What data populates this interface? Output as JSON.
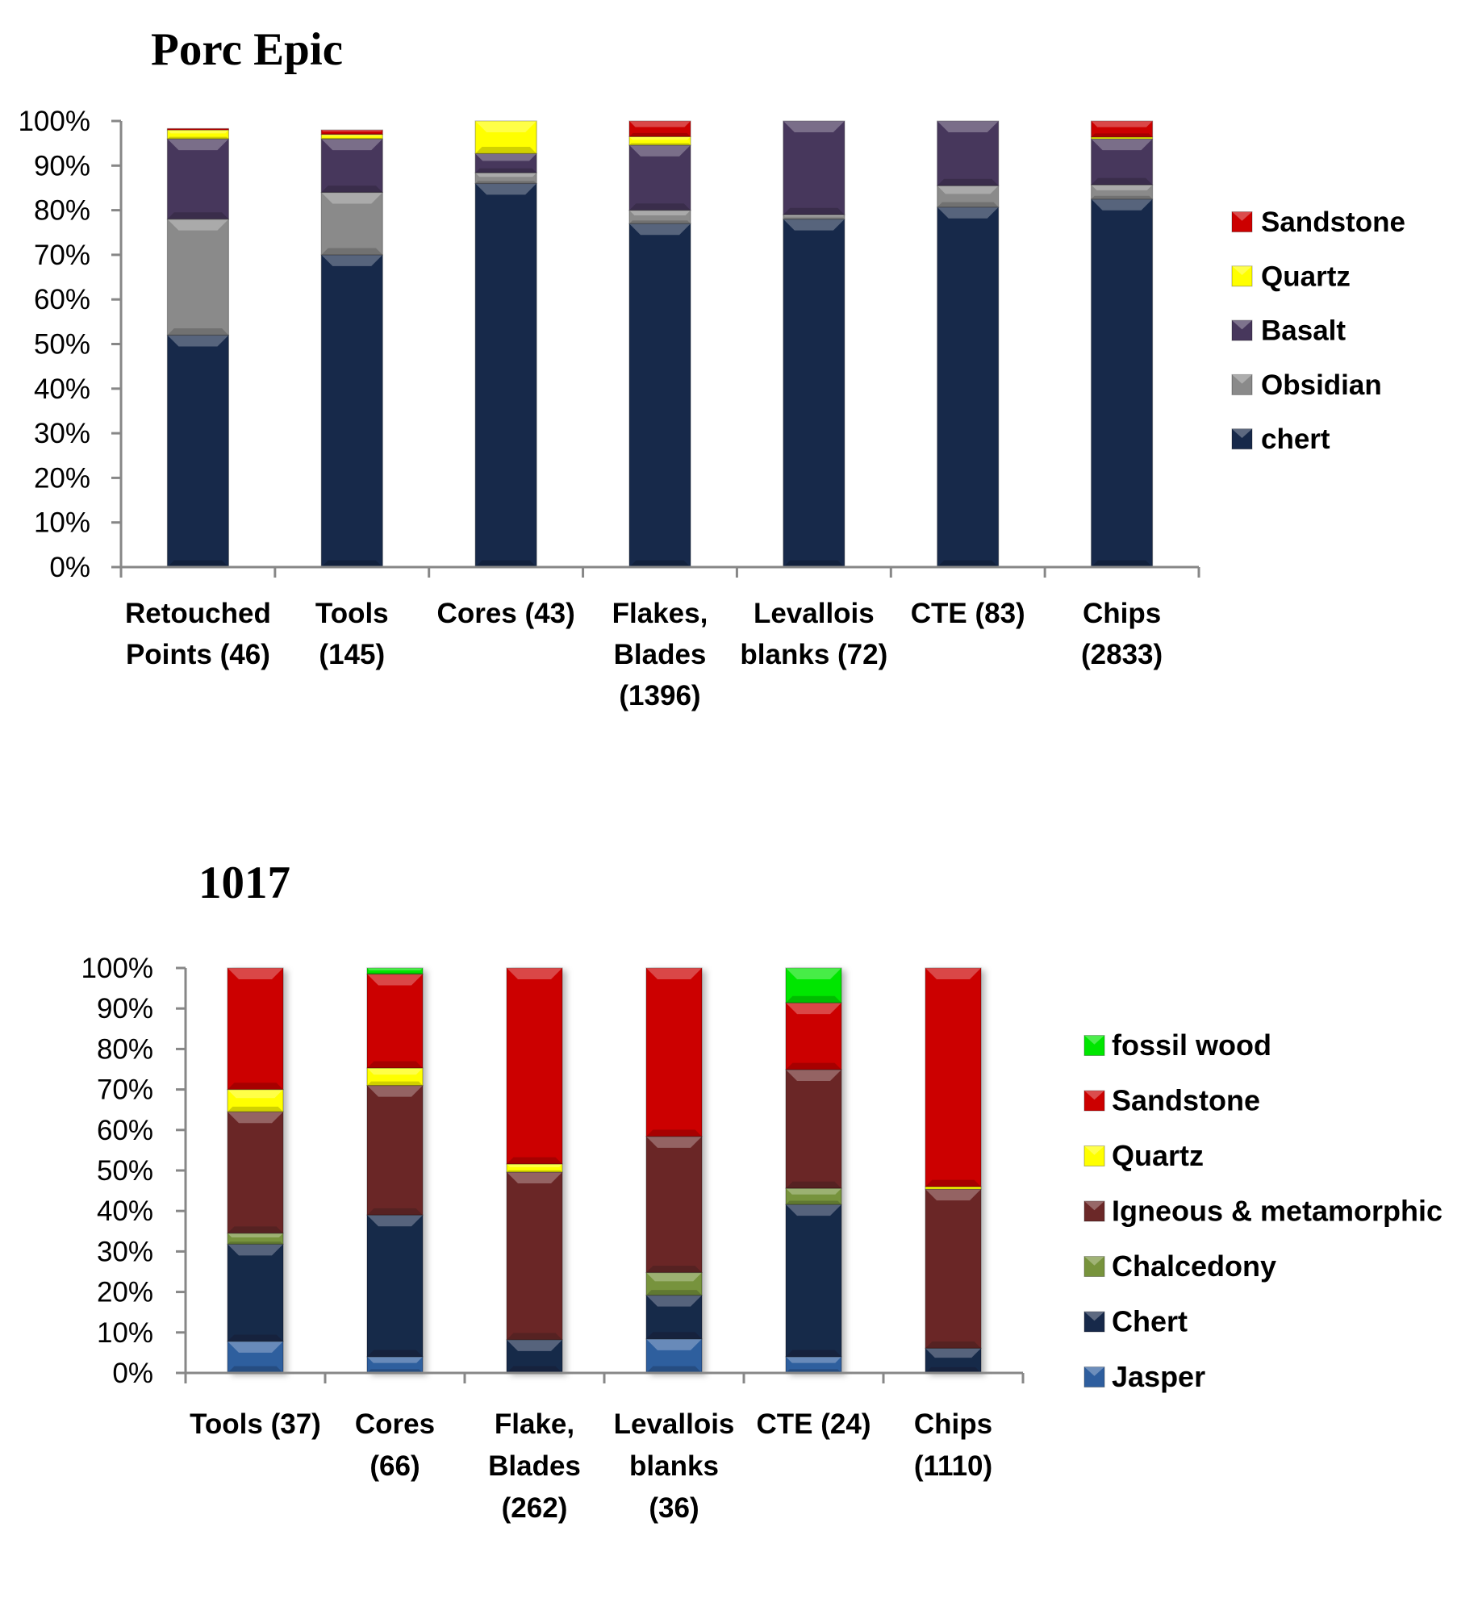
{
  "chart_data": [
    {
      "type": "bar",
      "stacked": true,
      "title": "Porc Epic",
      "xlabel": "",
      "ylabel": "",
      "ylim": [
        0,
        100
      ],
      "yticks": [
        "0%",
        "10%",
        "20%",
        "30%",
        "40%",
        "50%",
        "60%",
        "70%",
        "80%",
        "90%",
        "100%"
      ],
      "grid": false,
      "legend_position": "right",
      "categories": [
        [
          "Retouched",
          "Points (46)"
        ],
        [
          "Tools",
          "(145)"
        ],
        [
          "Cores (43)"
        ],
        [
          "Flakes,",
          "Blades",
          "(1396)"
        ],
        [
          "Levallois",
          "blanks (72)"
        ],
        [
          "CTE (83)"
        ],
        [
          "Chips",
          "(2833)"
        ]
      ],
      "series": [
        {
          "name": "chert",
          "color": "#17294a",
          "values": [
            52,
            70,
            86,
            77,
            78,
            80.7,
            82.5
          ]
        },
        {
          "name": "Obsidian",
          "color": "#8a8a8a",
          "values": [
            26,
            14,
            2.4,
            3,
            1,
            4.8,
            3.2
          ]
        },
        {
          "name": "Basalt",
          "color": "#47375c",
          "values": [
            18,
            12,
            4.3,
            14.6,
            21,
            14.5,
            10.3
          ]
        },
        {
          "name": "Quartz",
          "color": "#ffff00",
          "values": [
            2,
            1,
            7.3,
            1.9,
            0,
            0,
            0.4
          ]
        },
        {
          "name": "Sandstone",
          "color": "#cc0000",
          "values": [
            0.3,
            1,
            0,
            3.5,
            0,
            0,
            3.6
          ]
        }
      ]
    },
    {
      "type": "bar",
      "stacked": true,
      "title": "1017",
      "xlabel": "",
      "ylabel": "",
      "ylim": [
        0,
        100
      ],
      "yticks": [
        "0%",
        "10%",
        "20%",
        "30%",
        "40%",
        "50%",
        "60%",
        "70%",
        "80%",
        "90%",
        "100%"
      ],
      "grid": false,
      "legend_position": "right",
      "categories": [
        [
          "Tools (37)"
        ],
        [
          "Cores",
          "(66)"
        ],
        [
          "Flake,",
          "Blades",
          "(262)"
        ],
        [
          "Levallois",
          "blanks",
          "(36)"
        ],
        [
          "CTE (24)"
        ],
        [
          "Chips",
          "(1110)"
        ]
      ],
      "series": [
        {
          "name": "Jasper",
          "color": "#2e5e9e",
          "values": [
            7.8,
            4,
            0,
            8.4,
            4,
            0
          ]
        },
        {
          "name": "Chert",
          "color": "#17294a",
          "values": [
            24,
            35,
            8.2,
            10.8,
            37.6,
            6.1
          ]
        },
        {
          "name": "Chalcedony",
          "color": "#77933c",
          "values": [
            2.7,
            0,
            0,
            5.6,
            4,
            0
          ]
        },
        {
          "name": "Igneous & metamorphic",
          "color": "#6b2828",
          "values": [
            30,
            32,
            41.4,
            33.6,
            29.3,
            39.3
          ]
        },
        {
          "name": "Quartz",
          "color": "#ffff00",
          "values": [
            5.5,
            4.3,
            2,
            0,
            0,
            0.6
          ]
        },
        {
          "name": "Sandstone",
          "color": "#cc0000",
          "values": [
            30,
            23.2,
            48.4,
            41.6,
            16.5,
            54
          ]
        },
        {
          "name": "fossil wood",
          "color": "#00e600",
          "values": [
            0,
            1.5,
            0,
            0,
            8.6,
            0
          ]
        }
      ]
    }
  ]
}
